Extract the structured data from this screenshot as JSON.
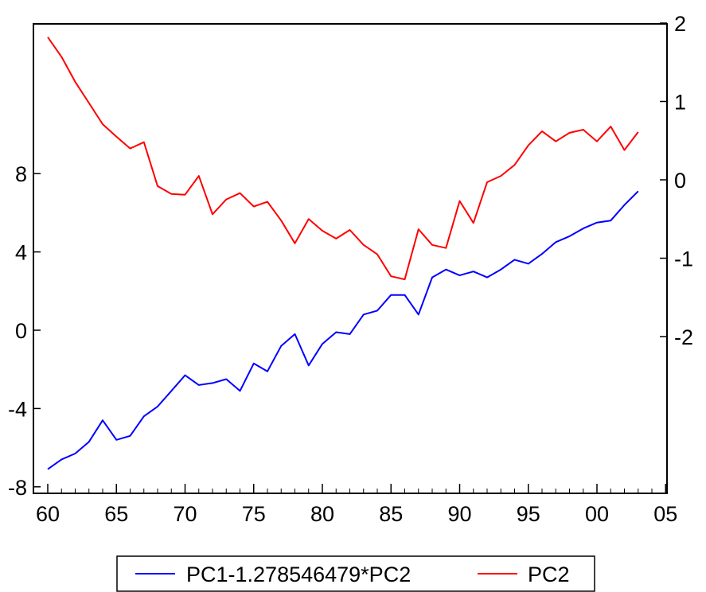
{
  "chart_data": {
    "type": "line",
    "x": [
      1960,
      1961,
      1962,
      1963,
      1964,
      1965,
      1966,
      1967,
      1968,
      1969,
      1970,
      1971,
      1972,
      1973,
      1974,
      1975,
      1976,
      1977,
      1978,
      1979,
      1980,
      1981,
      1982,
      1983,
      1984,
      1985,
      1986,
      1987,
      1988,
      1989,
      1990,
      1991,
      1992,
      1993,
      1994,
      1995,
      1996,
      1997,
      1998,
      1999,
      2000,
      2001,
      2002,
      2003
    ],
    "x_ticks": [
      {
        "value": 1960,
        "label": "60"
      },
      {
        "value": 1965,
        "label": "65"
      },
      {
        "value": 1970,
        "label": "70"
      },
      {
        "value": 1975,
        "label": "75"
      },
      {
        "value": 1980,
        "label": "80"
      },
      {
        "value": 1985,
        "label": "85"
      },
      {
        "value": 1990,
        "label": "90"
      },
      {
        "value": 1995,
        "label": "95"
      },
      {
        "value": 2000,
        "label": "00"
      },
      {
        "value": 2005,
        "label": "05"
      }
    ],
    "xlim": [
      1960,
      2005
    ],
    "y_left": {
      "ylim": [
        -8.4,
        15.4
      ],
      "ticks": [
        -8,
        -4,
        0,
        4,
        8
      ],
      "tick_labels": [
        "-8",
        "-4",
        "0",
        "4",
        "8"
      ]
    },
    "y_right": {
      "ylim": [
        -3.9,
        2.0
      ],
      "ticks": [
        -2,
        -1,
        0,
        1,
        2
      ],
      "tick_labels": [
        "-2",
        "-1",
        "0",
        "1",
        "2"
      ]
    },
    "series": [
      {
        "name": "PC1-1.278546479*PC2",
        "axis": "left",
        "color": "#0000ff",
        "values": [
          -7.1,
          -6.6,
          -6.3,
          -5.7,
          -4.6,
          -5.6,
          -5.4,
          -4.4,
          -3.9,
          -3.1,
          -2.3,
          -2.8,
          -2.7,
          -2.5,
          -3.1,
          -1.7,
          -2.1,
          -0.8,
          -0.2,
          -1.8,
          -0.7,
          -0.1,
          -0.2,
          0.8,
          1.0,
          1.8,
          1.8,
          0.8,
          2.7,
          3.1,
          2.8,
          3.0,
          2.7,
          3.1,
          3.6,
          3.4,
          3.9,
          4.5,
          4.8,
          5.2,
          5.5,
          5.6,
          6.4,
          7.1
        ]
      },
      {
        "name": "PC2",
        "axis": "right",
        "color": "#ff0000",
        "values": [
          1.82,
          1.57,
          1.25,
          0.98,
          0.71,
          0.55,
          0.4,
          0.48,
          -0.08,
          -0.18,
          -0.19,
          0.05,
          -0.44,
          -0.25,
          -0.17,
          -0.34,
          -0.28,
          -0.52,
          -0.81,
          -0.5,
          -0.65,
          -0.75,
          -0.64,
          -0.83,
          -0.95,
          -1.23,
          -1.27,
          -0.63,
          -0.83,
          -0.87,
          -0.27,
          -0.55,
          -0.03,
          0.05,
          0.19,
          0.44,
          0.62,
          0.49,
          0.6,
          0.64,
          0.49,
          0.68,
          0.38,
          0.61
        ]
      }
    ],
    "legend": "bottom",
    "grid": false
  }
}
